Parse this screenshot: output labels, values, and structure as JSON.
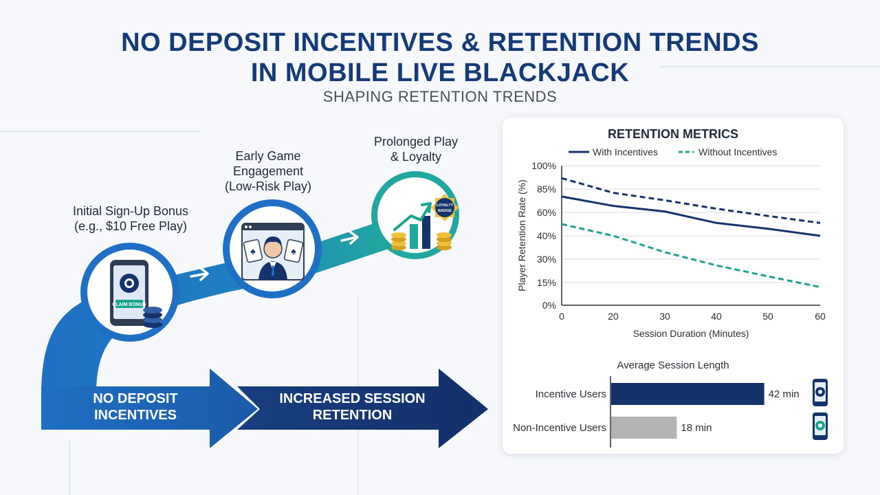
{
  "header": {
    "title_line1": "NO DEPOSIT INCENTIVES & RETENTION TRENDS",
    "title_line2": "IN MOBILE LIVE BLACKJACK",
    "subtitle": "SHAPING RETENTION TRENDS"
  },
  "flow": {
    "stage1_line1": "Initial Sign-Up Bonus",
    "stage1_line2": "(e.g., $10 Free Play)",
    "stage2_line1": "Early Game",
    "stage2_line2": "Engagement",
    "stage2_line3": "(Low-Risk Play)",
    "stage3_line1": "Prolonged Play",
    "stage3_line2": "& Loyalty",
    "phone_screen_text": "CLAIM BONUS",
    "badge_line1": "LOYALTY",
    "badge_line2": "BADGE"
  },
  "bottom_arrows": {
    "arrow1_line1": "NO DEPOSIT",
    "arrow1_line2": "INCENTIVES",
    "arrow2_line1": "INCREASED SESSION",
    "arrow2_line2": "RETENTION"
  },
  "colors": {
    "navy": "#14336b",
    "blue": "#1f6fc4",
    "teal": "#1aa38f",
    "gray_bar": "#b3b3b3"
  },
  "chart_data": [
    {
      "type": "line",
      "title": "RETENTION METRICS",
      "xlabel": "Session Duration (Minutes)",
      "ylabel": "Player Retention Rate (%)",
      "x_ticks": [
        0,
        20,
        30,
        40,
        50,
        60
      ],
      "y_ticks": [
        "0%",
        "15%",
        "30%",
        "40%",
        "60%",
        "85%",
        "100%"
      ],
      "legend_position": "top",
      "grid": true,
      "series": [
        {
          "name": "With Incentives",
          "style": "solid",
          "color": "#14336b",
          "x": [
            0,
            20,
            30,
            40,
            50,
            60
          ],
          "y": [
            77,
            67,
            61,
            51,
            46,
            40
          ]
        },
        {
          "name": "Without Incentives",
          "style": "dashed",
          "color": "#1aa38f",
          "x": [
            0,
            20,
            30,
            40,
            50,
            60
          ],
          "y": [
            50,
            40,
            33,
            26,
            19,
            12
          ]
        },
        {
          "name": "",
          "style": "dashed",
          "color": "#14336b",
          "x": [
            0,
            20,
            30,
            40,
            50,
            60
          ],
          "y": [
            92,
            81,
            73,
            64,
            57,
            51
          ]
        }
      ]
    },
    {
      "type": "bar",
      "title": "Average Session Length",
      "categories": [
        "Incentive Users",
        "Non-Incentive Users"
      ],
      "values": [
        42,
        18
      ],
      "value_labels": [
        "42 min",
        "18 min"
      ],
      "colors": [
        "#14336b",
        "#b3b3b3"
      ],
      "xlim": [
        0,
        52
      ]
    }
  ]
}
